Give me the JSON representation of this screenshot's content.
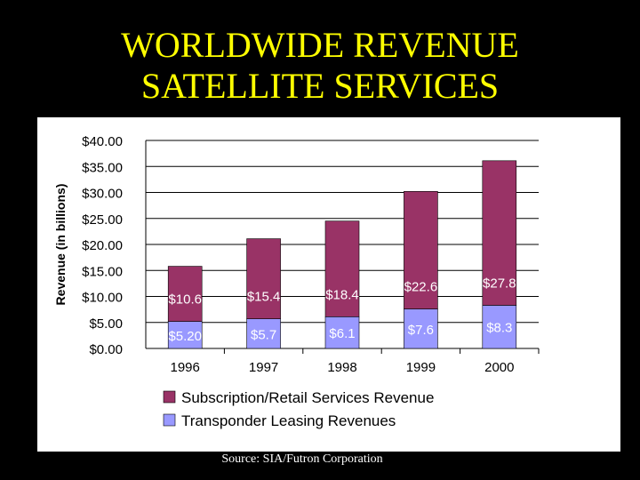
{
  "slide": {
    "title_line1": "WORLDWIDE REVENUE",
    "title_line2": "SATELLITE SERVICES",
    "source": "Source: SIA/Futron Corporation"
  },
  "colors": {
    "background": "#000000",
    "title": "#ffff00",
    "subscription": "#993366",
    "transponder": "#9999ff"
  },
  "chart_data": {
    "type": "bar",
    "stacked": true,
    "ylabel": "Revenue (in billions)",
    "ylim": [
      0,
      40
    ],
    "yticks": [
      0,
      5,
      10,
      15,
      20,
      25,
      30,
      35,
      40
    ],
    "ytick_labels": [
      "$0.00",
      "$5.00",
      "$10.00",
      "$15.00",
      "$20.00",
      "$25.00",
      "$30.00",
      "$35.00",
      "$40.00"
    ],
    "categories": [
      "1996",
      "1997",
      "1998",
      "1999",
      "2000"
    ],
    "series": [
      {
        "name": "Transponder Leasing Revenues",
        "values": [
          5.2,
          5.7,
          6.1,
          7.6,
          8.3
        ],
        "labels": [
          "$5.20",
          "$5.7",
          "$6.1",
          "$7.6",
          "$8.3"
        ]
      },
      {
        "name": "Subscription/Retail Services Revenue",
        "values": [
          10.6,
          15.4,
          18.4,
          22.6,
          27.8
        ],
        "labels": [
          "$10.6",
          "$15.4",
          "$18.4",
          "$22.6",
          "$27.8"
        ]
      }
    ],
    "legend": [
      "Subscription/Retail Services Revenue",
      "Transponder Leasing Revenues"
    ],
    "legend_position": "bottom"
  }
}
